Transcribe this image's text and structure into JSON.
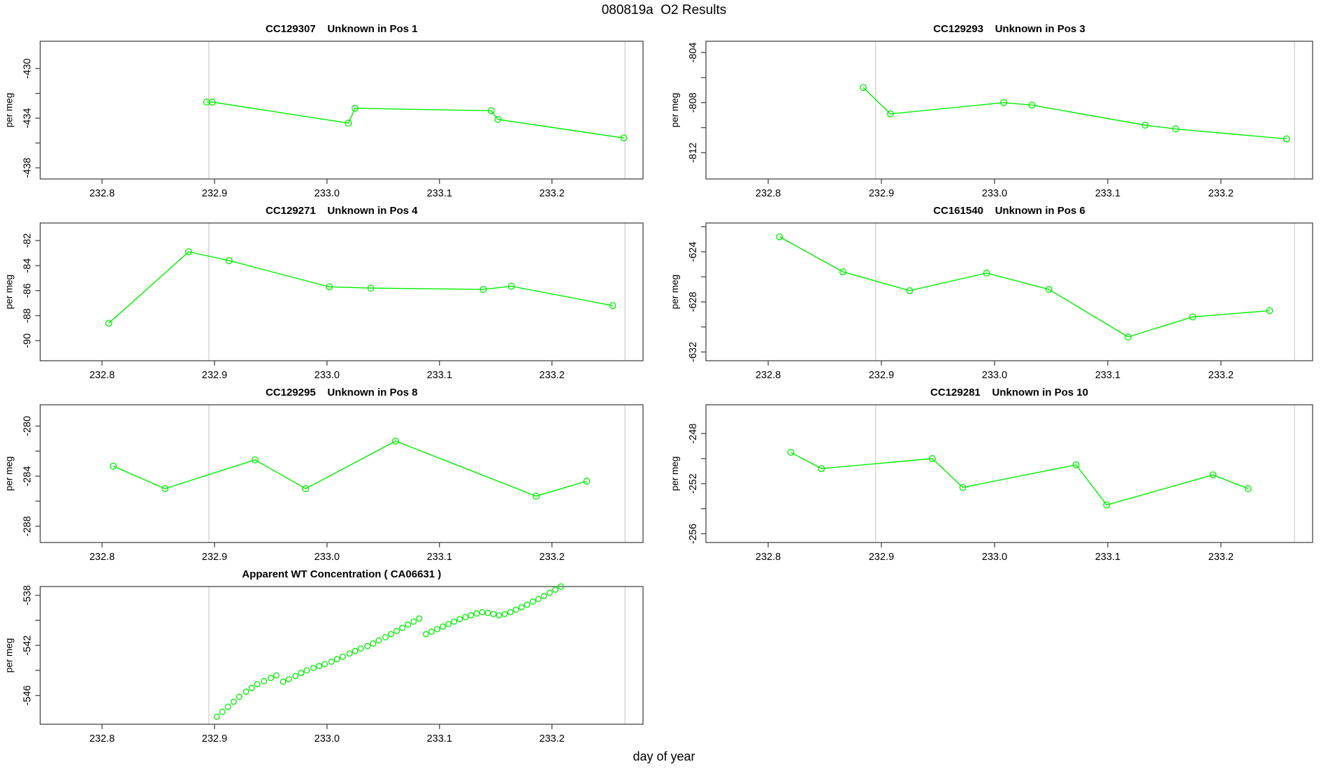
{
  "figure": {
    "title": "080819a  O2 Results",
    "xlabel": "day of year",
    "background": "#FFFFFF",
    "colors": {
      "series": "#00EE00",
      "grid": "#CDCDCD",
      "frame": "#474747",
      "text": "#000000"
    }
  },
  "axes_shared": {
    "xlim": [
      232.745,
      233.281
    ],
    "xticks": [
      232.8,
      232.9,
      233.0,
      233.1,
      233.2
    ],
    "xtick_labels": [
      "232.8",
      "232.9",
      "233.0",
      "233.1",
      "233.2"
    ],
    "gridlines_x": [
      232.895,
      233.265
    ],
    "ylabel": "per meg"
  },
  "chart_data": [
    {
      "title": "CC129307    Unknown in Pos 1",
      "type": "line",
      "ylim": [
        -427.8,
        -438.9
      ],
      "yticks_labeled": [
        -430,
        -434,
        -438
      ],
      "yticks_minor": [
        -432,
        -436
      ],
      "x": [
        232.893,
        232.898,
        233.019,
        233.025,
        233.146,
        233.152,
        233.264
      ],
      "y": [
        -432.7,
        -432.7,
        -434.4,
        -433.2,
        -433.4,
        -434.1,
        -435.6
      ]
    },
    {
      "title": "CC129293    Unknown in Pos 3",
      "type": "line",
      "ylim": [
        -803.1,
        -814.1
      ],
      "yticks_labeled": [
        -804,
        -808,
        -812
      ],
      "yticks_minor": [
        -806,
        -810
      ],
      "x": [
        232.884,
        232.908,
        233.008,
        233.033,
        233.133,
        233.16,
        233.258
      ],
      "y": [
        -806.8,
        -808.9,
        -808.0,
        -808.2,
        -809.8,
        -810.1,
        -810.9
      ]
    },
    {
      "title": "CC129271    Unknown in Pos 4",
      "type": "line",
      "ylim": [
        -80.6,
        -91.6
      ],
      "yticks_labeled": [
        -82,
        -84,
        -86,
        -88,
        -90
      ],
      "yticks_minor": [],
      "x": [
        232.806,
        232.877,
        232.913,
        233.002,
        233.039,
        233.139,
        233.164,
        233.254
      ],
      "y": [
        -88.6,
        -82.9,
        -83.6,
        -85.7,
        -85.8,
        -85.9,
        -85.65,
        -87.2
      ]
    },
    {
      "title": "CC161540    Unknown in Pos 6",
      "type": "line",
      "ylim": [
        -621.7,
        -632.7
      ],
      "yticks_labeled": [
        -624,
        -628,
        -632
      ],
      "yticks_minor": [
        -622,
        -626,
        -630
      ],
      "x": [
        232.81,
        232.866,
        232.925,
        232.993,
        233.048,
        233.118,
        233.175,
        233.243
      ],
      "y": [
        -622.8,
        -625.6,
        -627.1,
        -625.7,
        -627.0,
        -630.8,
        -629.2,
        -628.7
      ]
    },
    {
      "title": "CC129295    Unknown in Pos 8",
      "type": "line",
      "ylim": [
        -278.3,
        -289.3
      ],
      "yticks_labeled": [
        -280,
        -284,
        -288
      ],
      "yticks_minor": [
        -282,
        -286
      ],
      "x": [
        232.81,
        232.856,
        232.936,
        232.981,
        233.061,
        233.186,
        233.231
      ],
      "y": [
        -283.2,
        -285.0,
        -282.7,
        -285.0,
        -281.2,
        -285.6,
        -284.4
      ]
    },
    {
      "title": "CC129281    Unknown in Pos 10",
      "type": "line",
      "ylim": [
        -245.7,
        -256.7
      ],
      "yticks_labeled": [
        -248,
        -252,
        -256
      ],
      "yticks_minor": [
        -250,
        -254
      ],
      "x": [
        232.82,
        232.847,
        232.945,
        232.972,
        233.072,
        233.099,
        233.193,
        233.224
      ],
      "y": [
        -249.5,
        -250.8,
        -250.0,
        -252.3,
        -250.5,
        -253.7,
        -251.3,
        -252.4
      ]
    },
    {
      "title": "Apparent WT Concentration ( CA06631 )",
      "type": "scatter",
      "ylim": [
        -537.3,
        -548.3
      ],
      "yticks_labeled": [
        -538,
        -542,
        -546
      ],
      "yticks_minor": [
        -540,
        -544
      ],
      "x": [
        232.902,
        232.907,
        232.912,
        232.917,
        232.922,
        232.928,
        232.933,
        232.938,
        232.944,
        232.95,
        232.955,
        232.961,
        232.966,
        232.972,
        232.977,
        232.982,
        232.988,
        232.993,
        232.998,
        233.004,
        233.009,
        233.014,
        233.02,
        233.025,
        233.03,
        233.036,
        233.041,
        233.046,
        233.052,
        233.057,
        233.062,
        233.067,
        233.072,
        233.077,
        233.082,
        233.088,
        233.093,
        233.098,
        233.103,
        233.108,
        233.113,
        233.118,
        233.123,
        233.128,
        233.133,
        233.138,
        233.143,
        233.148,
        233.153,
        233.158,
        233.163,
        233.168,
        233.173,
        233.178,
        233.183,
        233.188,
        233.193,
        233.198,
        233.203,
        233.208
      ],
      "y": [
        -547.7,
        -547.3,
        -546.9,
        -546.5,
        -546.1,
        -545.7,
        -545.4,
        -545.1,
        -544.85,
        -544.6,
        -544.4,
        -544.9,
        -544.7,
        -544.45,
        -544.2,
        -544.0,
        -543.8,
        -543.65,
        -543.5,
        -543.3,
        -543.1,
        -542.9,
        -542.65,
        -542.45,
        -542.25,
        -542.05,
        -541.85,
        -541.6,
        -541.35,
        -541.1,
        -540.85,
        -540.6,
        -540.35,
        -540.1,
        -539.85,
        -541.1,
        -540.9,
        -540.7,
        -540.5,
        -540.3,
        -540.1,
        -539.9,
        -539.75,
        -539.6,
        -539.45,
        -539.35,
        -539.4,
        -539.5,
        -539.6,
        -539.5,
        -539.35,
        -539.15,
        -538.95,
        -538.75,
        -538.5,
        -538.3,
        -538.05,
        -537.8,
        -537.55,
        -537.3
      ]
    }
  ]
}
